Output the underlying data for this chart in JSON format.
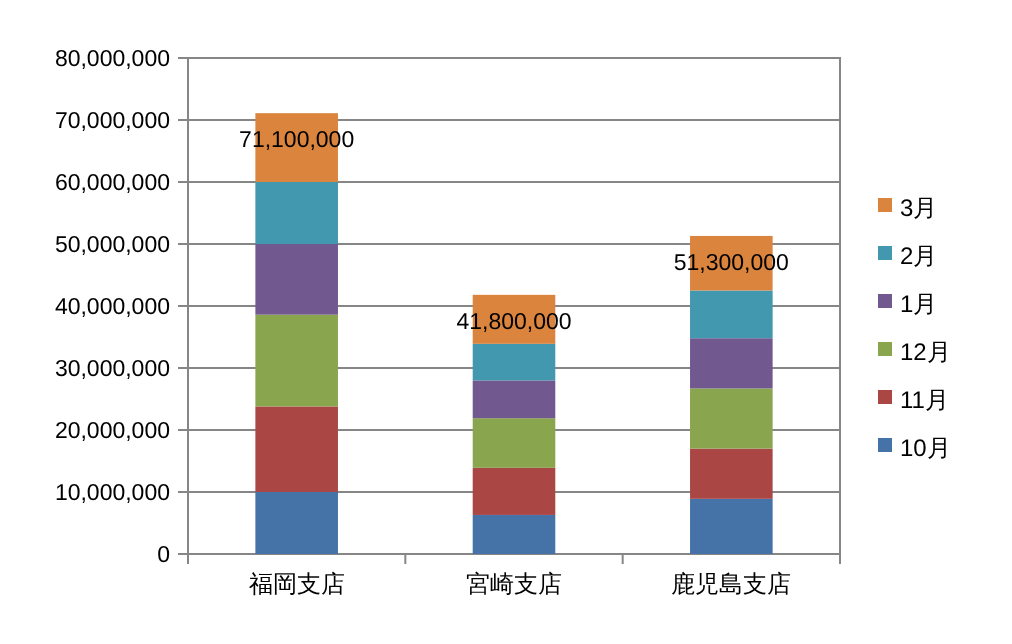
{
  "chart_data": {
    "type": "bar",
    "stacked": true,
    "categories": [
      "福岡支店",
      "宮崎支店",
      "鹿児島支店"
    ],
    "series": [
      {
        "name": "10月",
        "color": "#4572a7",
        "values": [
          10000000,
          6300000,
          8900000
        ]
      },
      {
        "name": "11月",
        "color": "#aa4643",
        "values": [
          13800000,
          7600000,
          8100000
        ]
      },
      {
        "name": "12月",
        "color": "#89a54e",
        "values": [
          14800000,
          8000000,
          9700000
        ]
      },
      {
        "name": "1月",
        "color": "#71588f",
        "values": [
          11400000,
          6100000,
          8100000
        ]
      },
      {
        "name": "2月",
        "color": "#4198af",
        "values": [
          10000000,
          5900000,
          7700000
        ]
      },
      {
        "name": "3月",
        "color": "#db843d",
        "values": [
          11100000,
          7900000,
          8800000
        ]
      }
    ],
    "totals": [
      "71,100,000",
      "41,800,000",
      "51,300,000"
    ],
    "ylim": [
      0,
      80000000
    ],
    "yticks": [
      {
        "value": 0,
        "label": "0"
      },
      {
        "value": 10000000,
        "label": "10,000,000"
      },
      {
        "value": 20000000,
        "label": "20,000,000"
      },
      {
        "value": 30000000,
        "label": "30,000,000"
      },
      {
        "value": 40000000,
        "label": "40,000,000"
      },
      {
        "value": 50000000,
        "label": "50,000,000"
      },
      {
        "value": 60000000,
        "label": "60,000,000"
      },
      {
        "value": 70000000,
        "label": "70,000,000"
      },
      {
        "value": 80000000,
        "label": "80,000,000"
      }
    ],
    "grid": "y",
    "legend": "right"
  }
}
